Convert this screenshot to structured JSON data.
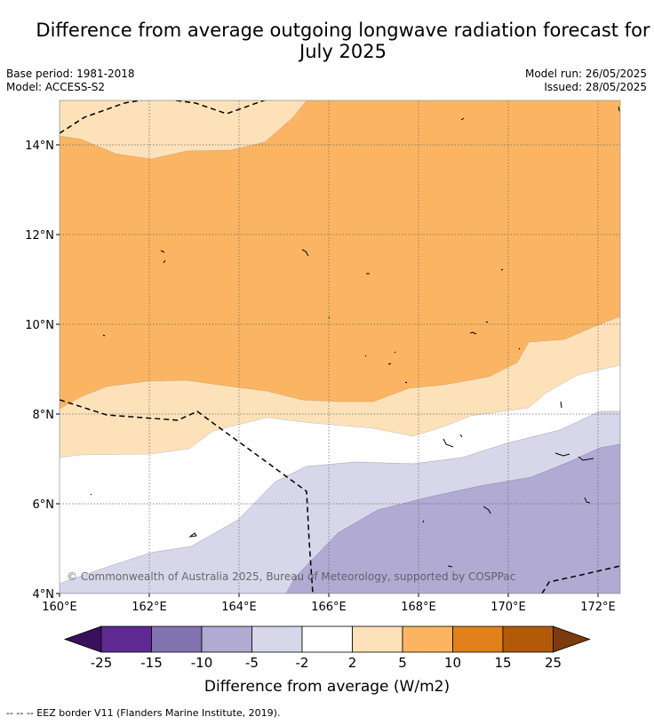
{
  "title": {
    "line1": "Difference from average outgoing longwave radiation forecast for",
    "line2": "July 2025"
  },
  "meta": {
    "base_period": "Base period: 1981-2018",
    "model": "Model: ACCESS-S2",
    "model_run": "Model run: 26/05/2025",
    "issued": "Issued: 28/05/2025"
  },
  "map": {
    "lon_range": [
      160,
      172.5
    ],
    "lat_range": [
      4,
      15
    ],
    "lon_ticks": [
      "160°E",
      "162°E",
      "164°E",
      "166°E",
      "168°E",
      "170°E",
      "172°E"
    ],
    "lat_ticks": [
      "4°N",
      "6°N",
      "8°N",
      "10°N",
      "12°N",
      "14°N"
    ],
    "gridlines": true,
    "copyright": "© Commonwealth of Australia 2025, Bureau of Meteorology, supported by COSPPac"
  },
  "legend": {
    "tick_labels": [
      "-25",
      "-15",
      "-10",
      "-5",
      "-2",
      "2",
      "5",
      "10",
      "15",
      "25"
    ],
    "colors": [
      "#3a0f5e",
      "#5e2a91",
      "#8373b0",
      "#b1aad3",
      "#d8d7e9",
      "#ffffff",
      "#fde1b9",
      "#fbb562",
      "#e1811b",
      "#b25a0a",
      "#7c3a0d"
    ],
    "axis_label": "Difference from average (W/m2)"
  },
  "footnote": "--  --  -- EEZ border V11 (Flanders Marine Institute, 2019)."
}
